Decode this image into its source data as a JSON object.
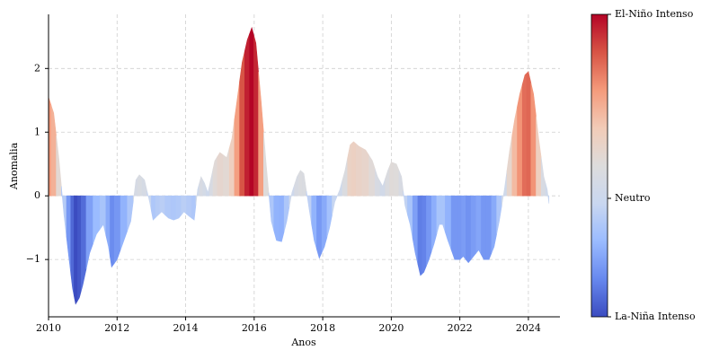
{
  "chart_data": {
    "type": "colored-area",
    "x_label": "Anos",
    "y_label": "Anomalia",
    "x": [
      2010.0,
      2010.15,
      2010.3,
      2010.45,
      2010.6,
      2010.7,
      2010.79,
      2010.9,
      2011.0,
      2011.2,
      2011.4,
      2011.6,
      2011.75,
      2011.84,
      2012.0,
      2012.2,
      2012.4,
      2012.55,
      2012.65,
      2012.8,
      2012.95,
      2013.05,
      2013.2,
      2013.3,
      2013.5,
      2013.65,
      2013.8,
      2013.95,
      2014.1,
      2014.25,
      2014.35,
      2014.45,
      2014.55,
      2014.65,
      2014.75,
      2014.85,
      2015.0,
      2015.2,
      2015.35,
      2015.5,
      2015.65,
      2015.8,
      2015.93,
      2016.05,
      2016.2,
      2016.35,
      2016.5,
      2016.65,
      2016.8,
      2016.95,
      2017.1,
      2017.25,
      2017.35,
      2017.45,
      2017.6,
      2017.75,
      2017.9,
      2018.05,
      2018.2,
      2018.35,
      2018.5,
      2018.65,
      2018.8,
      2018.9,
      2019.05,
      2019.25,
      2019.45,
      2019.6,
      2019.75,
      2019.9,
      2020.0,
      2020.15,
      2020.3,
      2020.4,
      2020.55,
      2020.7,
      2020.85,
      2020.95,
      2021.1,
      2021.25,
      2021.4,
      2021.5,
      2021.65,
      2021.85,
      2022.0,
      2022.1,
      2022.25,
      2022.4,
      2022.55,
      2022.7,
      2022.85,
      2023.0,
      2023.15,
      2023.3,
      2023.45,
      2023.6,
      2023.75,
      2023.9,
      2024.0,
      2024.15,
      2024.3,
      2024.45,
      2024.55,
      2024.6
    ],
    "values": [
      1.55,
      1.3,
      0.6,
      -0.3,
      -1.0,
      -1.45,
      -1.7,
      -1.6,
      -1.4,
      -0.9,
      -0.6,
      -0.45,
      -0.8,
      -1.12,
      -1.0,
      -0.7,
      -0.4,
      0.25,
      0.33,
      0.25,
      -0.1,
      -0.38,
      -0.3,
      -0.25,
      -0.35,
      -0.38,
      -0.35,
      -0.25,
      -0.32,
      -0.38,
      0.1,
      0.3,
      0.2,
      0.05,
      0.3,
      0.55,
      0.68,
      0.6,
      0.9,
      1.5,
      2.1,
      2.45,
      2.64,
      2.4,
      1.5,
      0.5,
      -0.4,
      -0.7,
      -0.72,
      -0.4,
      0.05,
      0.3,
      0.4,
      0.35,
      -0.2,
      -0.7,
      -0.98,
      -0.8,
      -0.5,
      -0.1,
      0.1,
      0.4,
      0.8,
      0.85,
      0.78,
      0.72,
      0.55,
      0.3,
      0.15,
      0.4,
      0.53,
      0.5,
      0.3,
      -0.15,
      -0.45,
      -0.9,
      -1.25,
      -1.2,
      -1.0,
      -0.75,
      -0.45,
      -0.45,
      -0.7,
      -1.0,
      -1.0,
      -0.95,
      -1.05,
      -0.95,
      -0.85,
      -1.0,
      -1.0,
      -0.8,
      -0.4,
      0.1,
      0.7,
      1.2,
      1.6,
      1.9,
      1.95,
      1.6,
      0.9,
      0.3,
      0.1,
      -0.12
    ],
    "xlim": [
      2010,
      2024.92
    ],
    "ylim": [
      -1.9,
      2.85
    ],
    "xticks": [
      2010,
      2012,
      2014,
      2016,
      2018,
      2020,
      2022,
      2024
    ],
    "yticks": [
      {
        "value": -1,
        "label": "−1"
      },
      0,
      1,
      2
    ],
    "grid": true,
    "colormap": [
      "#3b4cc0",
      "#6788ee",
      "#9abbff",
      "#c9d7f0",
      "#dddcdc",
      "#f2cbb7",
      "#f49a7b",
      "#d75445",
      "#b40426"
    ],
    "clim": [
      -1.7,
      2.64
    ],
    "cticks": [
      {
        "value": -1.7,
        "label": "La-Niña Intenso"
      },
      {
        "value": 0,
        "label": "Neutro"
      },
      {
        "value": 2.64,
        "label": "El-Niño Intenso"
      }
    ]
  }
}
